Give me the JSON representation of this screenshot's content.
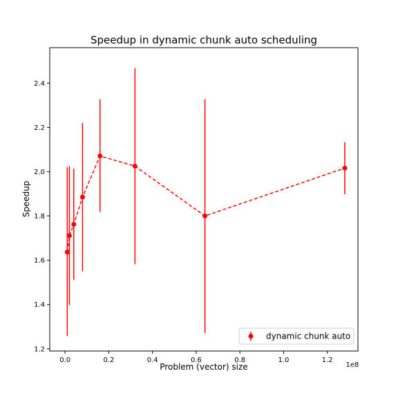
{
  "chart_data": {
    "type": "scatter",
    "title": "Speedup in dynamic chunk auto scheduling",
    "xlabel": "Problem (vector) size",
    "ylabel": "Speedup",
    "x_offset_label": "1e8",
    "xlim": [
      -0.07,
      1.34
    ],
    "ylim": [
      1.19,
      2.56
    ],
    "xticks": [
      0.0,
      0.2,
      0.4,
      0.6,
      0.8,
      1.0,
      1.2
    ],
    "xtick_labels": [
      "0.0",
      "0.2",
      "0.4",
      "0.6",
      "0.8",
      "1.0",
      "1.2"
    ],
    "yticks": [
      1.2,
      1.4,
      1.6,
      1.8,
      2.0,
      2.2,
      2.4
    ],
    "ytick_labels": [
      "1.2",
      "1.4",
      "1.6",
      "1.8",
      "2.0",
      "2.2",
      "2.4"
    ],
    "grid": false,
    "legend_position": "lower right",
    "series": [
      {
        "name": "dynamic chunk auto",
        "color": "#ff0000",
        "line_style": "dashed",
        "marker": "circle",
        "x": [
          0.01,
          0.02,
          0.04,
          0.08,
          0.16,
          0.32,
          0.64,
          1.28
        ],
        "y": [
          1.637,
          1.711,
          1.762,
          1.885,
          2.071,
          2.025,
          1.8,
          2.016
        ],
        "yerr_low": [
          1.258,
          1.397,
          1.512,
          1.55,
          1.818,
          1.582,
          1.271,
          1.898
        ],
        "yerr_high": [
          2.02,
          2.025,
          2.013,
          2.22,
          2.327,
          2.467,
          2.327,
          2.133
        ]
      }
    ]
  }
}
